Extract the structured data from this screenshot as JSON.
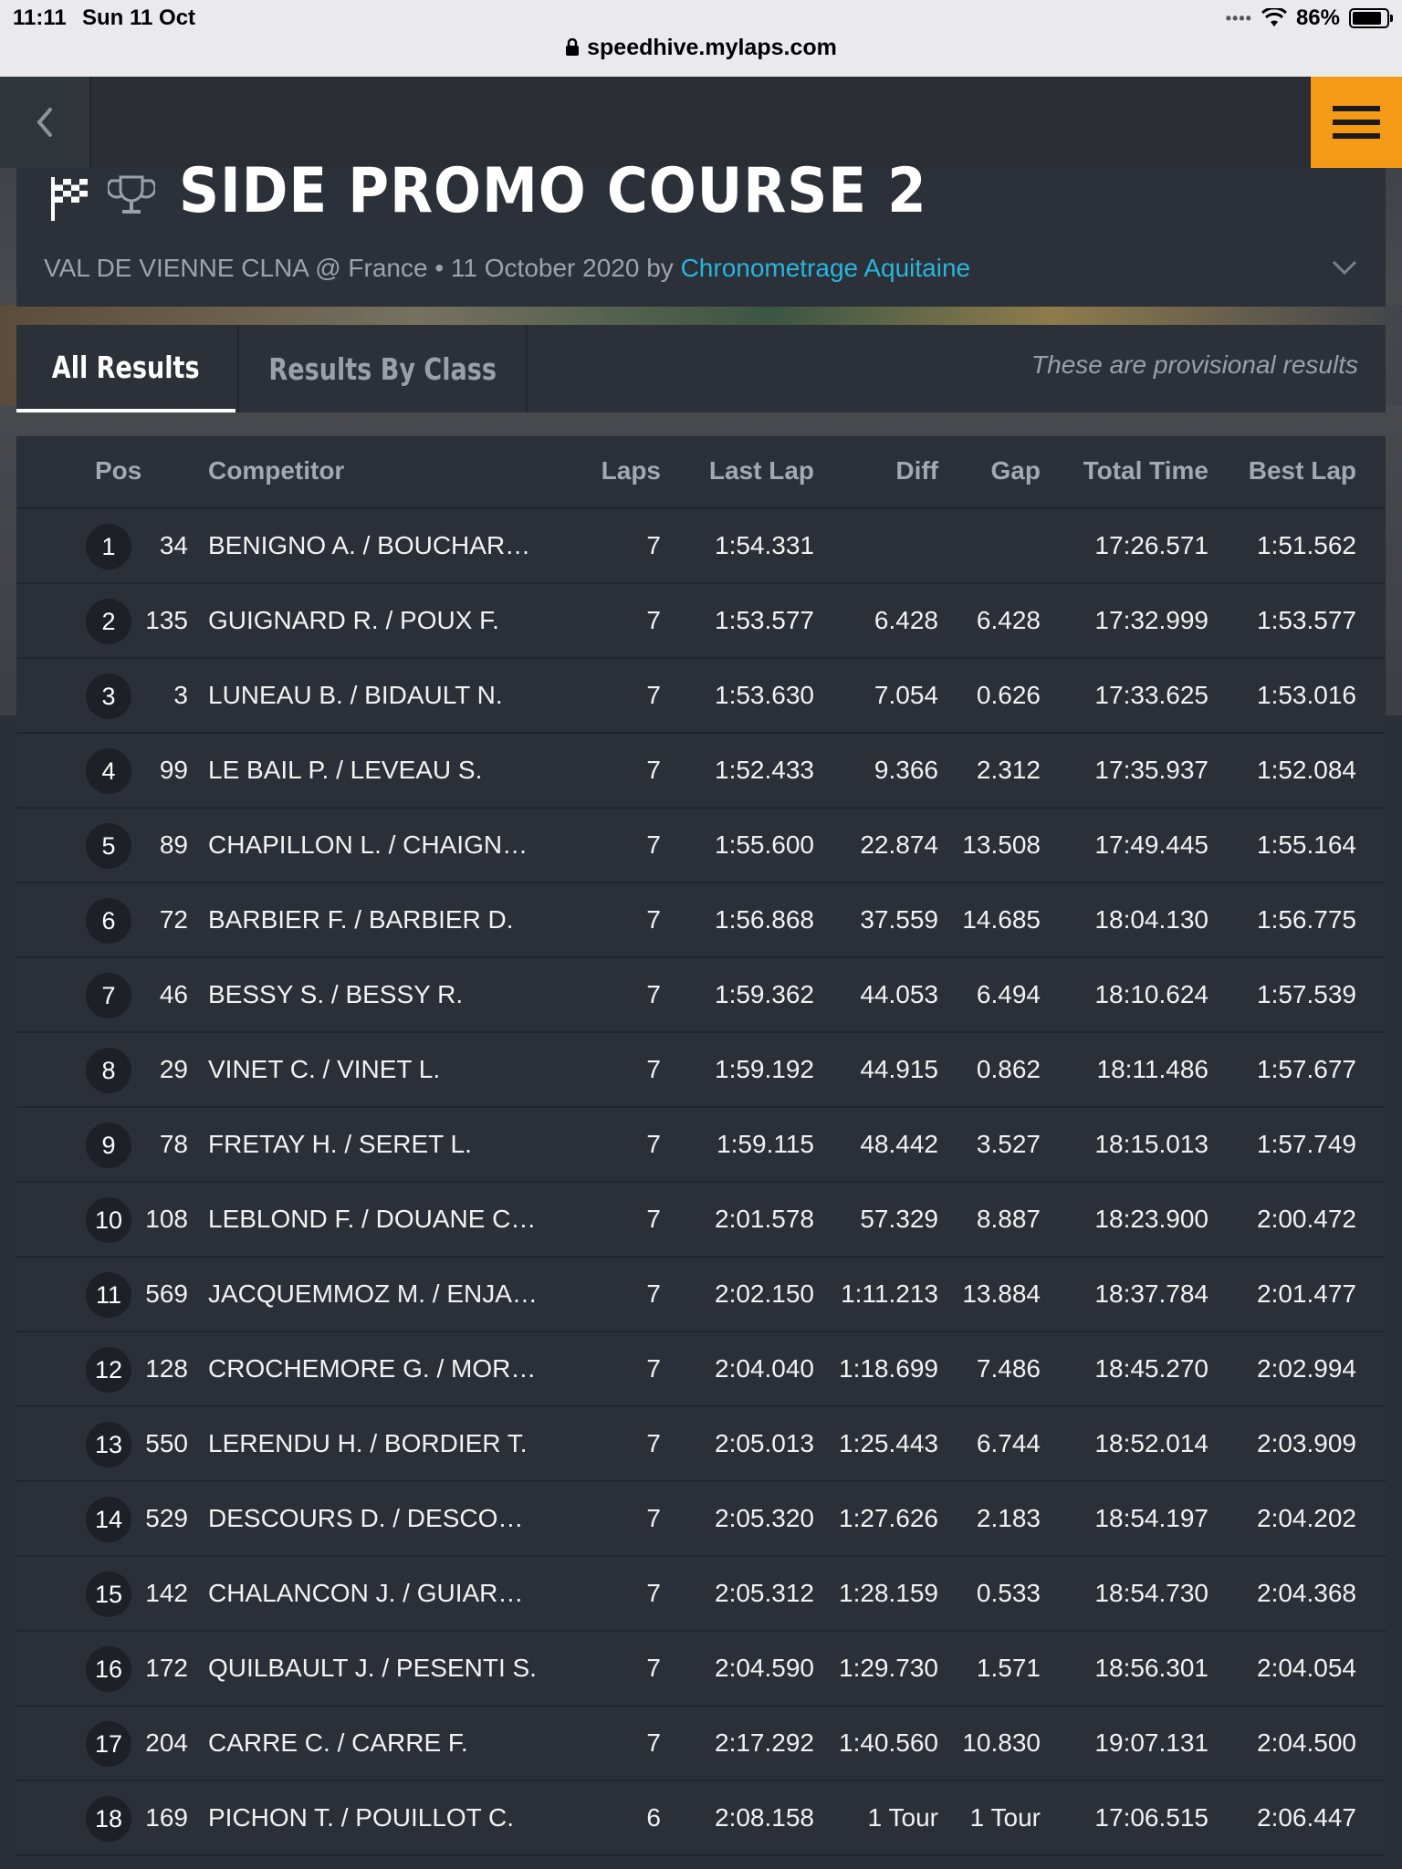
{
  "status_bar": {
    "time": "11:11",
    "date": "Sun 11 Oct",
    "battery": "86%",
    "battery_level": 0.86
  },
  "browser": {
    "url": "speedhive.mylaps.com"
  },
  "event": {
    "title": "SIDE PROMO COURSE 2",
    "location": "VAL DE VIENNE CLNA @ France • 11 October 2020 by ",
    "organizer": "Chronometrage Aquitaine"
  },
  "tabs": {
    "all": "All Results",
    "by_class": "Results By Class",
    "notice": "These are provisional results"
  },
  "columns": {
    "pos": "Pos",
    "competitor": "Competitor",
    "laps": "Laps",
    "last_lap": "Last Lap",
    "diff": "Diff",
    "gap": "Gap",
    "total_time": "Total Time",
    "best_lap": "Best Lap"
  },
  "results": [
    {
      "pos": "1",
      "num": "34",
      "competitor": "BENIGNO A. / BOUCHAR…",
      "laps": "7",
      "last_lap": "1:54.331",
      "diff": "",
      "gap": "",
      "total": "17:26.571",
      "best": "1:51.562"
    },
    {
      "pos": "2",
      "num": "135",
      "competitor": "GUIGNARD R. / POUX F.",
      "laps": "7",
      "last_lap": "1:53.577",
      "diff": "6.428",
      "gap": "6.428",
      "total": "17:32.999",
      "best": "1:53.577"
    },
    {
      "pos": "3",
      "num": "3",
      "competitor": "LUNEAU B. / BIDAULT N.",
      "laps": "7",
      "last_lap": "1:53.630",
      "diff": "7.054",
      "gap": "0.626",
      "total": "17:33.625",
      "best": "1:53.016"
    },
    {
      "pos": "4",
      "num": "99",
      "competitor": "LE BAIL P. / LEVEAU S.",
      "laps": "7",
      "last_lap": "1:52.433",
      "diff": "9.366",
      "gap": "2.312",
      "total": "17:35.937",
      "best": "1:52.084"
    },
    {
      "pos": "5",
      "num": "89",
      "competitor": "CHAPILLON L. / CHAIGN…",
      "laps": "7",
      "last_lap": "1:55.600",
      "diff": "22.874",
      "gap": "13.508",
      "total": "17:49.445",
      "best": "1:55.164"
    },
    {
      "pos": "6",
      "num": "72",
      "competitor": "BARBIER F. / BARBIER D.",
      "laps": "7",
      "last_lap": "1:56.868",
      "diff": "37.559",
      "gap": "14.685",
      "total": "18:04.130",
      "best": "1:56.775"
    },
    {
      "pos": "7",
      "num": "46",
      "competitor": "BESSY S. / BESSY R.",
      "laps": "7",
      "last_lap": "1:59.362",
      "diff": "44.053",
      "gap": "6.494",
      "total": "18:10.624",
      "best": "1:57.539"
    },
    {
      "pos": "8",
      "num": "29",
      "competitor": "VINET C. / VINET L.",
      "laps": "7",
      "last_lap": "1:59.192",
      "diff": "44.915",
      "gap": "0.862",
      "total": "18:11.486",
      "best": "1:57.677"
    },
    {
      "pos": "9",
      "num": "78",
      "competitor": "FRETAY H. / SERET L.",
      "laps": "7",
      "last_lap": "1:59.115",
      "diff": "48.442",
      "gap": "3.527",
      "total": "18:15.013",
      "best": "1:57.749"
    },
    {
      "pos": "10",
      "num": "108",
      "competitor": "LEBLOND F. / DOUANE C…",
      "laps": "7",
      "last_lap": "2:01.578",
      "diff": "57.329",
      "gap": "8.887",
      "total": "18:23.900",
      "best": "2:00.472"
    },
    {
      "pos": "11",
      "num": "569",
      "competitor": "JACQUEMMOZ M. / ENJA…",
      "laps": "7",
      "last_lap": "2:02.150",
      "diff": "1:11.213",
      "gap": "13.884",
      "total": "18:37.784",
      "best": "2:01.477"
    },
    {
      "pos": "12",
      "num": "128",
      "competitor": "CROCHEMORE G. / MOR…",
      "laps": "7",
      "last_lap": "2:04.040",
      "diff": "1:18.699",
      "gap": "7.486",
      "total": "18:45.270",
      "best": "2:02.994"
    },
    {
      "pos": "13",
      "num": "550",
      "competitor": "LERENDU H. / BORDIER T.",
      "laps": "7",
      "last_lap": "2:05.013",
      "diff": "1:25.443",
      "gap": "6.744",
      "total": "18:52.014",
      "best": "2:03.909"
    },
    {
      "pos": "14",
      "num": "529",
      "competitor": "DESCOURS D. / DESCO…",
      "laps": "7",
      "last_lap": "2:05.320",
      "diff": "1:27.626",
      "gap": "2.183",
      "total": "18:54.197",
      "best": "2:04.202"
    },
    {
      "pos": "15",
      "num": "142",
      "competitor": "CHALANCON J. / GUIAR…",
      "laps": "7",
      "last_lap": "2:05.312",
      "diff": "1:28.159",
      "gap": "0.533",
      "total": "18:54.730",
      "best": "2:04.368"
    },
    {
      "pos": "16",
      "num": "172",
      "competitor": "QUILBAULT J. / PESENTI S.",
      "laps": "7",
      "last_lap": "2:04.590",
      "diff": "1:29.730",
      "gap": "1.571",
      "total": "18:56.301",
      "best": "2:04.054"
    },
    {
      "pos": "17",
      "num": "204",
      "competitor": "CARRE C. / CARRE F.",
      "laps": "7",
      "last_lap": "2:17.292",
      "diff": "1:40.560",
      "gap": "10.830",
      "total": "19:07.131",
      "best": "2:04.500"
    },
    {
      "pos": "18",
      "num": "169",
      "competitor": "PICHON T. / POUILLOT C.",
      "laps": "6",
      "last_lap": "2:08.158",
      "diff": "1 Tour",
      "gap": "1 Tour",
      "total": "17:06.515",
      "best": "2:06.447"
    }
  ],
  "colors": {
    "accent_menu": "#f59a16",
    "link": "#27b6dd",
    "background": "#2a2e36"
  },
  "icons": [
    "back-chevron-icon",
    "hamburger-menu-icon",
    "checkered-flag-icon",
    "trophy-icon",
    "chevron-down-icon",
    "lock-icon",
    "wifi-icon",
    "battery-icon"
  ]
}
